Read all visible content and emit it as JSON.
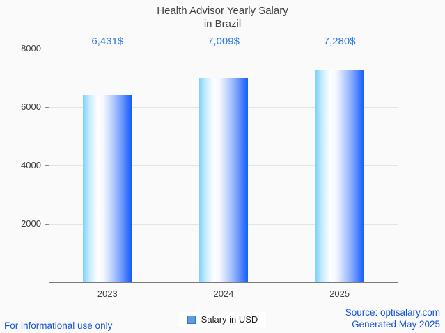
{
  "title": {
    "line1": "Health Advisor Yearly Salary",
    "line2": "in Brazil"
  },
  "chart_data": {
    "type": "bar",
    "title": "Health Advisor Yearly Salary in Brazil",
    "categories": [
      "2023",
      "2024",
      "2025"
    ],
    "series": [
      {
        "name": "Salary in USD",
        "values": [
          6431,
          7009,
          7280
        ],
        "value_labels": [
          "6,431$",
          "7,009$",
          "7,280$"
        ]
      }
    ],
    "xlabel": "",
    "ylabel": "",
    "ylim": [
      0,
      8000
    ],
    "yticks": [
      2000,
      4000,
      6000,
      8000
    ],
    "grid": true,
    "legend_position": "bottom",
    "annotation_color": "#2a79d8",
    "bar_gradient": [
      "#7dd2ff",
      "#ffffff",
      "#145ffb"
    ]
  },
  "legend": {
    "label": "Salary in USD",
    "marker_fill": "#5b9ce4",
    "marker_border": "#3f74bd"
  },
  "footer": {
    "left": "For informational use only",
    "source": "Source: optisalary.com",
    "generated": "Generated May 2025",
    "text_color": "#1353d8"
  }
}
